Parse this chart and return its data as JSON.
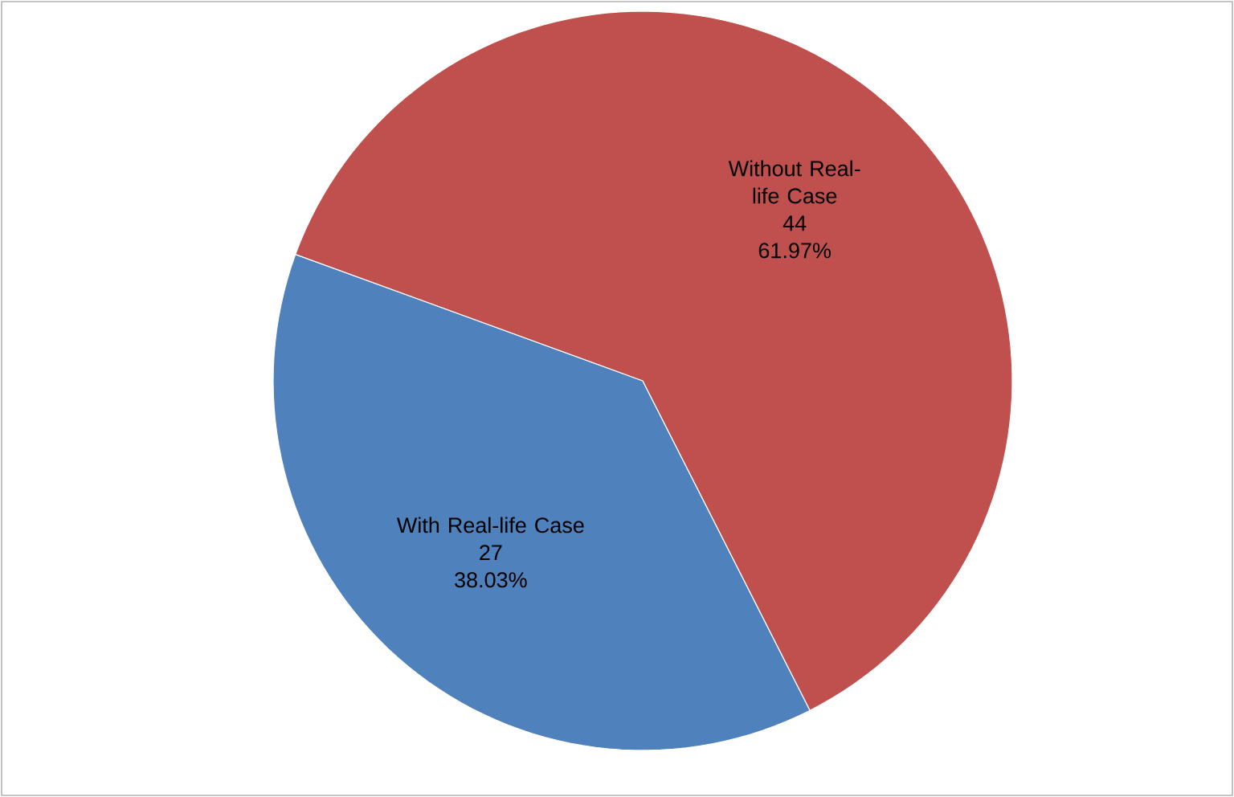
{
  "chart_data": {
    "type": "pie",
    "categories": [
      "With Real-life Case",
      "Without Real-life Case"
    ],
    "values": [
      38.03,
      61.97
    ],
    "colors": [
      "#4f81bd",
      "#c0504d"
    ],
    "value_labels": [
      "38.03%",
      "61.97%"
    ],
    "annotations": [
      "27",
      "44"
    ]
  }
}
